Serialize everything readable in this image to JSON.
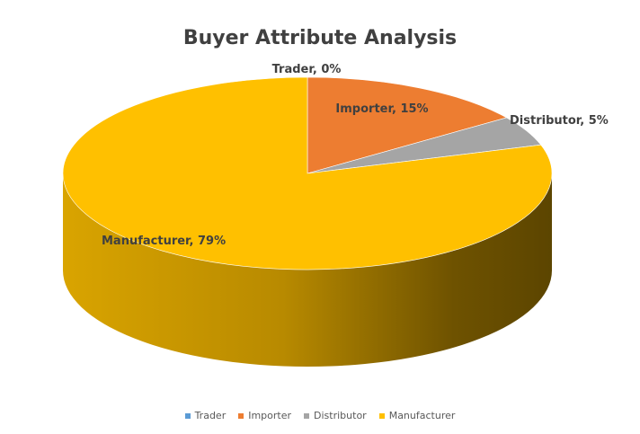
{
  "chart_data": {
    "type": "pie",
    "title": "Buyer Attribute Analysis",
    "categories": [
      "Trader",
      "Importer",
      "Distributor",
      "Manufacturer"
    ],
    "values": [
      0,
      15,
      5,
      79
    ],
    "data_labels": [
      "Trader, 0%",
      "Importer, 15%",
      "Distributor, 5%",
      "Manufacturer, 79%"
    ],
    "colors": [
      "#5B9BD5",
      "#ED7D31",
      "#A5A5A5",
      "#FFC000"
    ],
    "side_colors": [
      "#3A6F9C",
      "#A8561F",
      "#6E6E6E",
      "#8A6A00"
    ],
    "legend": {
      "position": "bottom",
      "items": [
        {
          "label": "Trader",
          "color": "#5B9BD5"
        },
        {
          "label": "Importer",
          "color": "#ED7D31"
        },
        {
          "label": "Distributor",
          "color": "#A5A5A5"
        },
        {
          "label": "Manufacturer",
          "color": "#FFC000"
        }
      ]
    },
    "style": "3d"
  }
}
